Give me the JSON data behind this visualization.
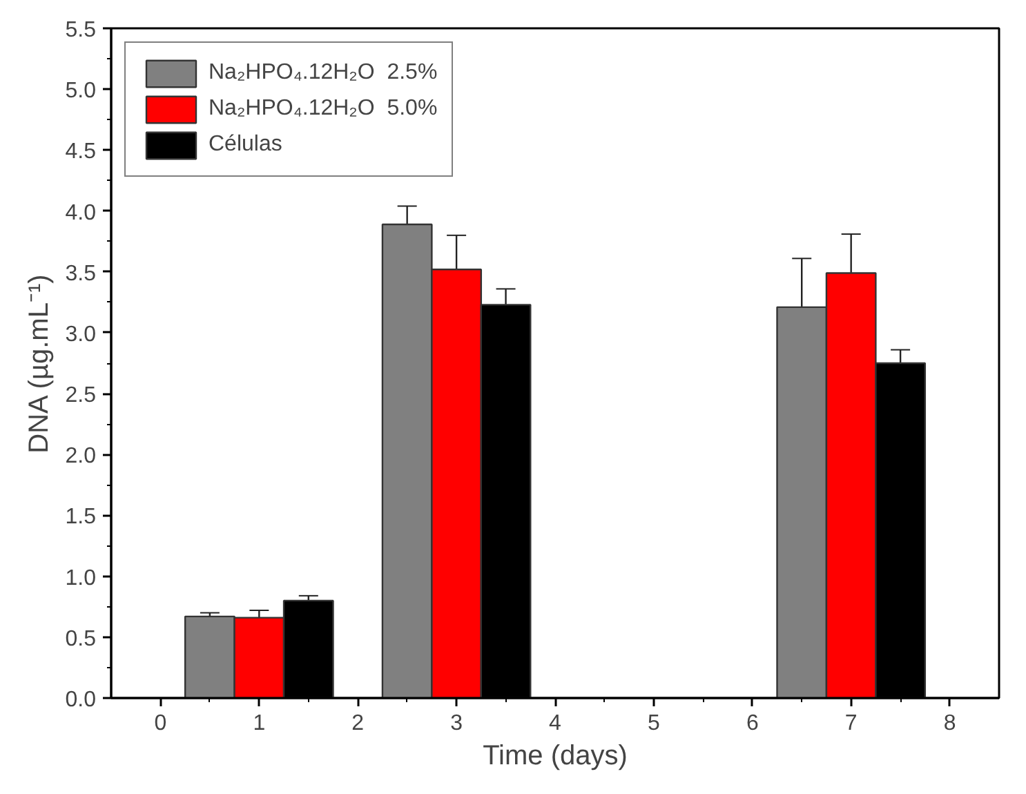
{
  "chart_data": {
    "type": "bar",
    "xlabel": "Time (days)",
    "ylabel": "DNA (µg.mL⁻¹)",
    "xlim": [
      -0.5,
      8.5
    ],
    "xticks": [
      0,
      1,
      2,
      3,
      4,
      5,
      6,
      7,
      8
    ],
    "ylim": [
      0,
      5.5
    ],
    "yticks": [
      {
        "value": 0,
        "label": "0.0"
      },
      {
        "value": 0.5,
        "label": "0.5"
      },
      {
        "value": 1,
        "label": "1.0"
      },
      {
        "value": 1.5,
        "label": "1.5"
      },
      {
        "value": 2,
        "label": "2.0"
      },
      {
        "value": 2.5,
        "label": "2.5"
      },
      {
        "value": 3,
        "label": "3.0"
      },
      {
        "value": 3.5,
        "label": "3.5"
      },
      {
        "value": 4,
        "label": "4.0"
      },
      {
        "value": 4.5,
        "label": "4.5"
      },
      {
        "value": 5,
        "label": "5.0"
      },
      {
        "value": 5.5,
        "label": "5.5"
      }
    ],
    "grid": false,
    "legend": "top left",
    "series": [
      {
        "name": "Na₂HPO₄.12H₂O  2.5%",
        "color": "#808080",
        "x": [
          0.5,
          2.5,
          6.5
        ],
        "values": [
          0.67,
          3.89,
          3.21
        ],
        "errors": [
          0.03,
          0.15,
          0.4
        ]
      },
      {
        "name": "Na₂HPO₄.12H₂O  5.0%",
        "color": "#ff0000",
        "x": [
          1,
          3,
          7
        ],
        "values": [
          0.66,
          3.52,
          3.49
        ],
        "errors": [
          0.06,
          0.28,
          0.32
        ]
      },
      {
        "name": "Células",
        "color": "#000000",
        "x": [
          1.5,
          3.5,
          7.5
        ],
        "values": [
          0.8,
          3.23,
          2.75
        ],
        "errors": [
          0.04,
          0.13,
          0.11
        ]
      }
    ]
  }
}
